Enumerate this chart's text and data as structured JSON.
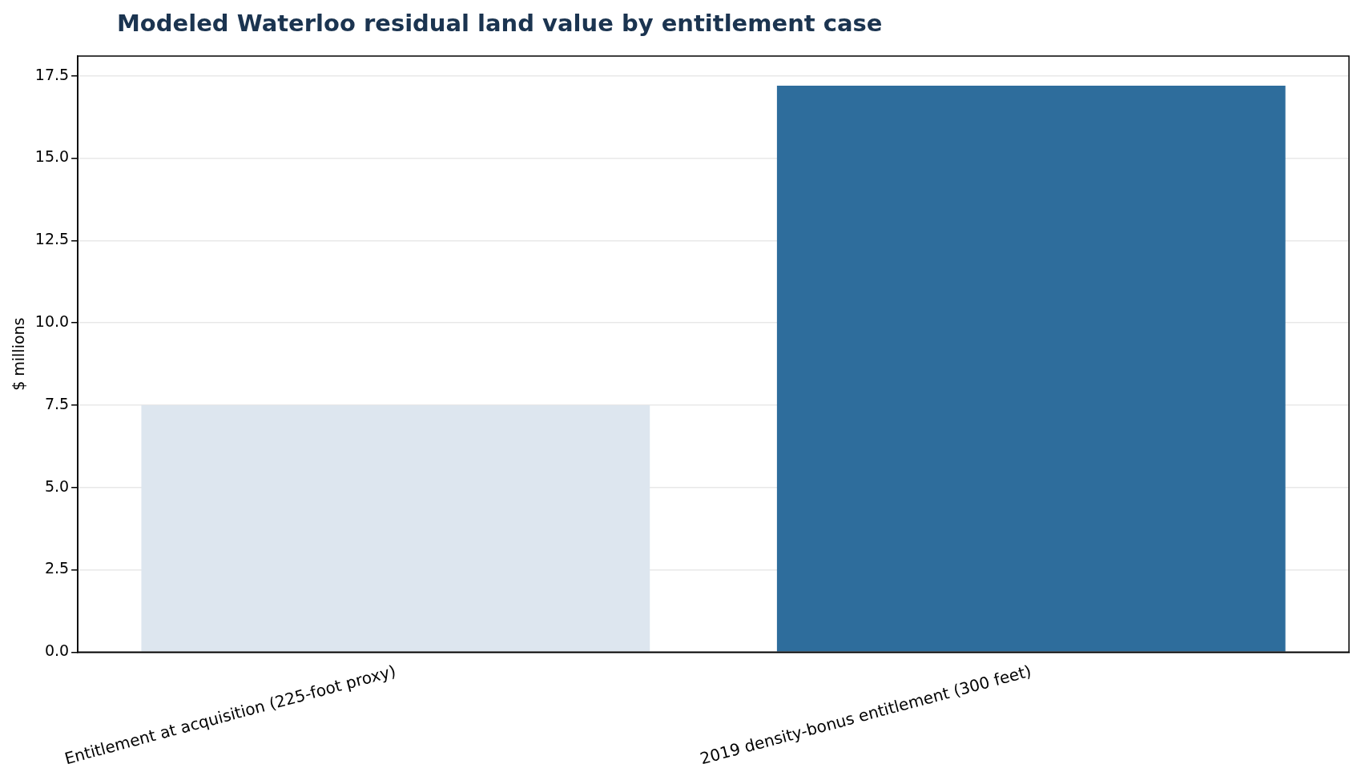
{
  "chart_data": {
    "type": "bar",
    "title": "Modeled Waterloo residual land value by entitlement case",
    "ylabel": "$ millions",
    "categories": [
      "Entitlement at acquisition (225-foot proxy)",
      "2019 density-bonus entitlement (300 feet)"
    ],
    "values": [
      7.5,
      17.2
    ],
    "colors": [
      "#dde6ef",
      "#2e6d9c"
    ],
    "ylim": [
      0,
      18.1
    ],
    "yticks": [
      {
        "value": 0,
        "label": "0.0"
      },
      {
        "value": 2.5,
        "label": "2.5"
      },
      {
        "value": 5,
        "label": "5.0"
      },
      {
        "value": 7.5,
        "label": "7.5"
      },
      {
        "value": 10,
        "label": "10.0"
      },
      {
        "value": 12.5,
        "label": "12.5"
      },
      {
        "value": 15,
        "label": "15.0"
      },
      {
        "value": 17.5,
        "label": "17.5"
      }
    ],
    "grid": "y",
    "legend": false
  }
}
